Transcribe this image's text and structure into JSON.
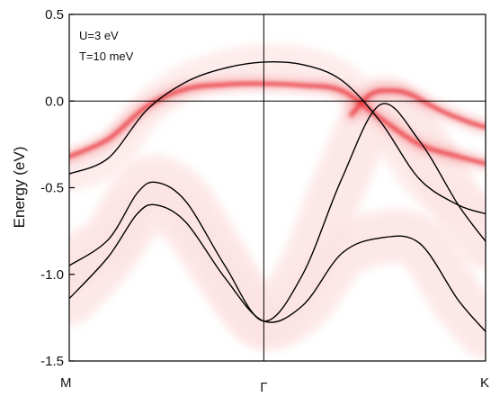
{
  "chart_data": {
    "type": "line",
    "title": "",
    "xlabel": "",
    "ylabel": "Energy (eV)",
    "ylim": [
      -1.5,
      0.5
    ],
    "x_ticks": [
      {
        "pos": 0.0,
        "label": "M"
      },
      {
        "pos": 1.0,
        "label": "Γ"
      },
      {
        "pos": 2.14,
        "label": "K"
      }
    ],
    "y_ticks": [
      {
        "value": 0.5,
        "label": "0.5"
      },
      {
        "value": 0.0,
        "label": "0.0"
      },
      {
        "value": -0.5,
        "label": "-0.5"
      },
      {
        "value": -1.0,
        "label": "-1.0"
      },
      {
        "value": -1.5,
        "label": "-1.5"
      }
    ],
    "annotations": [
      "U=3 eV",
      "T=10 meV"
    ],
    "reference_lines": {
      "fermi_level": 0.0,
      "gamma_position": 1.0
    },
    "bands": [
      {
        "x": [
          0,
          0.2,
          0.4,
          0.6,
          0.8,
          1.0,
          1.2,
          1.4,
          1.6,
          1.8,
          2.0,
          2.14
        ],
        "y": [
          -0.42,
          -0.33,
          -0.05,
          0.11,
          0.19,
          0.225,
          0.21,
          0.12,
          -0.12,
          -0.45,
          -0.6,
          -0.65
        ]
      },
      {
        "x": [
          0,
          0.2,
          0.35,
          0.45,
          0.6,
          0.8,
          1.0,
          1.2,
          1.4,
          1.6,
          1.8,
          2.0,
          2.14
        ],
        "y": [
          -0.95,
          -0.8,
          -0.53,
          -0.47,
          -0.58,
          -0.95,
          -1.27,
          -1.0,
          -0.45,
          -0.02,
          -0.23,
          -0.6,
          -0.81
        ]
      },
      {
        "x": [
          0,
          0.2,
          0.35,
          0.45,
          0.6,
          0.8,
          1.0,
          1.2,
          1.4,
          1.6,
          1.8,
          2.0,
          2.14
        ],
        "y": [
          -1.14,
          -0.9,
          -0.65,
          -0.6,
          -0.7,
          -1.02,
          -1.27,
          -1.18,
          -0.88,
          -0.79,
          -0.82,
          -1.15,
          -1.33
        ]
      }
    ],
    "spectral_weight": [
      {
        "x": [
          0,
          0.2,
          0.4,
          0.6,
          0.8,
          1.0,
          1.2,
          1.4,
          1.6,
          1.8,
          2.0,
          2.14
        ],
        "y": [
          -0.32,
          -0.22,
          -0.03,
          0.07,
          0.095,
          0.1,
          0.09,
          0.06,
          -0.1,
          -0.25,
          -0.32,
          -0.36
        ]
      },
      {
        "x": [
          1.45,
          1.55,
          1.65,
          1.75,
          1.9,
          2.05,
          2.14
        ],
        "y": [
          -0.08,
          0.04,
          0.06,
          0.04,
          -0.05,
          -0.12,
          -0.15
        ]
      }
    ],
    "colors": {
      "bands": "#000000",
      "spectral": "#e8282e",
      "spectral_light": "#fde4e4",
      "grid": "#000000"
    }
  }
}
